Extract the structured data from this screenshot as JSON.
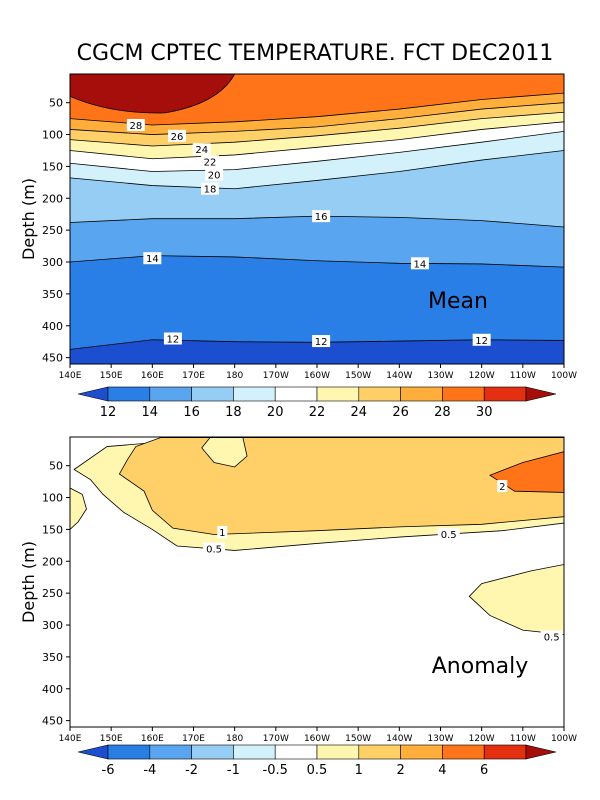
{
  "title": "CGCM CPTEC TEMPERATURE. FCT DEC2011",
  "colors": {
    "mean_bands": [
      "#1c4fd0",
      "#2a7fe6",
      "#5aa5ef",
      "#96cdf5",
      "#d2f1fb",
      "#ffffff",
      "#fff6b0",
      "#ffd068",
      "#ffae3c",
      "#ff7418",
      "#e43010",
      "#a50e0b"
    ],
    "anomaly_bands": [
      "#1c4fd0",
      "#2a7fe6",
      "#5aa5ef",
      "#96cdf5",
      "#d2f1fb",
      "#ffffff",
      "#fff6b0",
      "#ffd068",
      "#ffae3c",
      "#ff7418",
      "#e43010",
      "#a50e0b"
    ]
  },
  "chart_data": [
    {
      "type": "contour",
      "panel_label": "Mean",
      "ylabel": "Depth (m)",
      "xlabel": "",
      "x_ticks": [
        "140E",
        "150E",
        "160E",
        "170E",
        "180",
        "170W",
        "160W",
        "150W",
        "140W",
        "130W",
        "120W",
        "110W",
        "100W"
      ],
      "x_range_deg_east": [
        140,
        260
      ],
      "y_ticks": [
        "50",
        "100",
        "150",
        "200",
        "250",
        "300",
        "350",
        "400",
        "450"
      ],
      "y_range": [
        5,
        460
      ],
      "contour_levels": [
        12,
        14,
        16,
        18,
        20,
        22,
        24,
        26,
        28,
        30
      ],
      "contour_labels": [
        {
          "text": "28",
          "lon": 156,
          "depth": 85
        },
        {
          "text": "26",
          "lon": 166,
          "depth": 102
        },
        {
          "text": "24",
          "lon": 172,
          "depth": 123
        },
        {
          "text": "22",
          "lon": 174,
          "depth": 142
        },
        {
          "text": "20",
          "lon": 175,
          "depth": 163
        },
        {
          "text": "18",
          "lon": 174,
          "depth": 185
        },
        {
          "text": "16",
          "lon": 201,
          "depth": 228
        },
        {
          "text": "14",
          "lon": 160,
          "depth": 294
        },
        {
          "text": "14",
          "lon": 225,
          "depth": 302
        },
        {
          "text": "12",
          "lon": 165,
          "depth": 420
        },
        {
          "text": "12",
          "lon": 201,
          "depth": 424
        },
        {
          "text": "12",
          "lon": 240,
          "depth": 422
        }
      ],
      "colorbar": {
        "labels": [
          "12",
          "14",
          "16",
          "18",
          "20",
          "22",
          "24",
          "26",
          "28",
          "30"
        ]
      },
      "isotherms": [
        {
          "level": 28,
          "depth_at": [
            [
              140,
              75
            ],
            [
              160,
              85
            ],
            [
              180,
              80
            ],
            [
              200,
              72
            ],
            [
              220,
              60
            ],
            [
              240,
              45
            ],
            [
              260,
              35
            ]
          ]
        },
        {
          "level": 26,
          "depth_at": [
            [
              140,
              92
            ],
            [
              160,
              100
            ],
            [
              180,
              95
            ],
            [
              200,
              88
            ],
            [
              220,
              75
            ],
            [
              240,
              60
            ],
            [
              260,
              50
            ]
          ]
        },
        {
          "level": 24,
          "depth_at": [
            [
              140,
              108
            ],
            [
              160,
              118
            ],
            [
              180,
              112
            ],
            [
              200,
              102
            ],
            [
              220,
              90
            ],
            [
              240,
              75
            ],
            [
              260,
              65
            ]
          ]
        },
        {
          "level": 22,
          "depth_at": [
            [
              140,
              125
            ],
            [
              160,
              138
            ],
            [
              180,
              132
            ],
            [
              200,
              120
            ],
            [
              220,
              108
            ],
            [
              240,
              92
            ],
            [
              260,
              80
            ]
          ]
        },
        {
          "level": 20,
          "depth_at": [
            [
              140,
              145
            ],
            [
              160,
              158
            ],
            [
              180,
              155
            ],
            [
              200,
              142
            ],
            [
              220,
              128
            ],
            [
              240,
              112
            ],
            [
              260,
              95
            ]
          ]
        },
        {
          "level": 18,
          "depth_at": [
            [
              140,
              168
            ],
            [
              160,
              180
            ],
            [
              180,
              185
            ],
            [
              200,
              172
            ],
            [
              220,
              158
            ],
            [
              240,
              140
            ],
            [
              260,
              125
            ]
          ]
        },
        {
          "level": 16,
          "depth_at": [
            [
              140,
              238
            ],
            [
              160,
              232
            ],
            [
              180,
              232
            ],
            [
              200,
              228
            ],
            [
              220,
              230
            ],
            [
              240,
              235
            ],
            [
              260,
              245
            ]
          ]
        },
        {
          "level": 14,
          "depth_at": [
            [
              140,
              300
            ],
            [
              160,
              290
            ],
            [
              180,
              292
            ],
            [
              200,
              298
            ],
            [
              220,
              302
            ],
            [
              240,
              303
            ],
            [
              260,
              308
            ]
          ]
        },
        {
          "level": 12,
          "depth_at": [
            [
              140,
              437
            ],
            [
              160,
              422
            ],
            [
              180,
              425
            ],
            [
              200,
              426
            ],
            [
              220,
              424
            ],
            [
              240,
              422
            ],
            [
              260,
              423
            ]
          ]
        }
      ]
    },
    {
      "type": "contour",
      "panel_label": "Anomaly",
      "ylabel": "Depth (m)",
      "xlabel": "",
      "x_ticks": [
        "140E",
        "150E",
        "160E",
        "170E",
        "180",
        "170W",
        "160W",
        "150W",
        "140W",
        "130W",
        "120W",
        "110W",
        "100W"
      ],
      "x_range_deg_east": [
        140,
        260
      ],
      "y_ticks": [
        "50",
        "100",
        "150",
        "200",
        "250",
        "300",
        "350",
        "400",
        "450"
      ],
      "y_range": [
        5,
        460
      ],
      "contour_levels": [
        -6,
        -4,
        -2,
        -1,
        -0.5,
        0.5,
        1,
        2,
        4,
        6
      ],
      "contour_labels": [
        {
          "text": "2",
          "lon": 245,
          "depth": 82
        },
        {
          "text": "1",
          "lon": 177,
          "depth": 154
        },
        {
          "text": "0.5",
          "lon": 232,
          "depth": 157
        },
        {
          "text": "0.5",
          "lon": 175,
          "depth": 180
        },
        {
          "text": "0.5",
          "lon": 257,
          "depth": 318
        }
      ],
      "regions": [
        {
          "level": 0.5,
          "lon_lat_poly": [
            [
              141,
              56
            ],
            [
              149,
              20
            ],
            [
              175,
              6
            ],
            [
              200,
              6
            ],
            [
              250,
              6
            ],
            [
              260,
              6
            ],
            [
              260,
              140
            ],
            [
              245,
              152
            ],
            [
              220,
              162
            ],
            [
              200,
              172
            ],
            [
              180,
              183
            ],
            [
              166,
              176
            ],
            [
              160,
              150
            ],
            [
              153,
              123
            ],
            [
              148,
              95
            ],
            [
              145,
              72
            ]
          ]
        },
        {
          "level": 1,
          "lon_lat_poly": [
            [
              154,
              40
            ],
            [
              156,
              20
            ],
            [
              162,
              6
            ],
            [
              260,
              6
            ],
            [
              260,
              130
            ],
            [
              240,
              142
            ],
            [
              220,
              146
            ],
            [
              200,
              152
            ],
            [
              175,
              158
            ],
            [
              165,
              148
            ],
            [
              160,
              120
            ],
            [
              158,
              90
            ],
            [
              152,
              63
            ]
          ]
        },
        {
          "level": 2,
          "lon_lat_poly": [
            [
              242,
              65
            ],
            [
              250,
              45
            ],
            [
              260,
              28
            ],
            [
              260,
              92
            ],
            [
              248,
              90
            ]
          ]
        },
        {
          "level": 0.5,
          "lon_lat_poly": [
            [
              140,
              85
            ],
            [
              143,
              95
            ],
            [
              144,
              118
            ],
            [
              142,
              138
            ],
            [
              140,
              150
            ]
          ]
        },
        {
          "level": 0.5,
          "lon_lat_poly": [
            [
              237,
              255
            ],
            [
              240,
              235
            ],
            [
              252,
              215
            ],
            [
              260,
              205
            ],
            [
              260,
              315
            ],
            [
              250,
              308
            ],
            [
              242,
              285
            ]
          ]
        }
      ],
      "white_hole": {
        "lon_lat_poly": [
          [
            174,
            6
          ],
          [
            182,
            6
          ],
          [
            183,
            35
          ],
          [
            180,
            52
          ],
          [
            175,
            45
          ],
          [
            172,
            22
          ]
        ]
      },
      "colorbar": {
        "labels": [
          "-6",
          "-4",
          "-2",
          "-1",
          "-0.5",
          "0.5",
          "1",
          "2",
          "4",
          "6"
        ]
      }
    }
  ]
}
